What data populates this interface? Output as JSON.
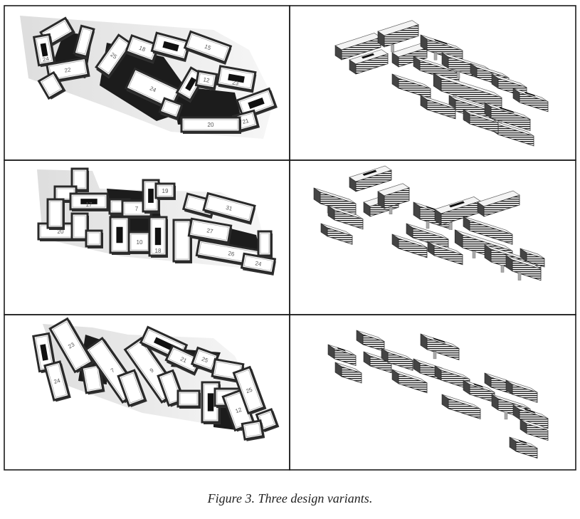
{
  "figure": {
    "caption": "Figure 3.  Three design variants.",
    "rows": 3,
    "columns": 2,
    "panels": [
      {
        "row": 1,
        "view": "plan",
        "labels": [
          "24",
          "22",
          "25",
          "18",
          "15",
          "24",
          "12",
          "23",
          "21",
          "20"
        ]
      },
      {
        "row": 1,
        "view": "perspective",
        "labels": []
      },
      {
        "row": 2,
        "view": "plan",
        "labels": [
          "17",
          "7",
          "19",
          "31",
          "20",
          "10",
          "18",
          "27",
          "26",
          "24"
        ]
      },
      {
        "row": 2,
        "view": "perspective",
        "labels": []
      },
      {
        "row": 3,
        "view": "plan",
        "labels": [
          "24",
          "23",
          "7",
          "9",
          "21",
          "25",
          "19",
          "12",
          "25"
        ]
      },
      {
        "row": 3,
        "view": "perspective",
        "labels": []
      }
    ]
  },
  "colors": {
    "border": "#1a1a1a",
    "block_fill": "#ffffff",
    "block_edge": "#555555",
    "shadow": "#1c1c1c",
    "ground": "#d9d9d9"
  }
}
